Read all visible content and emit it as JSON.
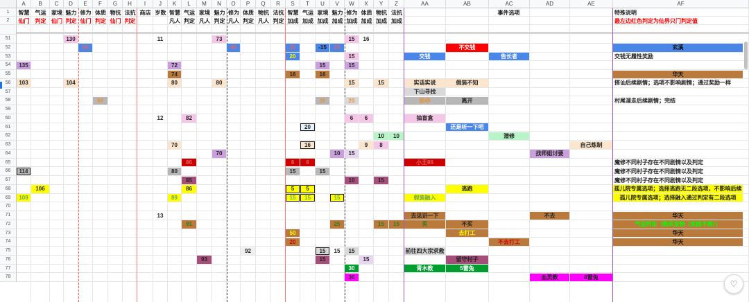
{
  "columns": [
    "A",
    "B",
    "C",
    "D",
    "E",
    "F",
    "G",
    "H",
    "I",
    "J",
    "K",
    "L",
    "M",
    "N",
    "O",
    "P",
    "Q",
    "R",
    "S",
    "T",
    "U",
    "V",
    "W",
    "X",
    "Y",
    "Z",
    "AA",
    "AB",
    "AC",
    "AD",
    "AE",
    "AF"
  ],
  "rows": [
    "1",
    "2",
    "51",
    "52",
    "53",
    "54",
    "55",
    "56",
    "57",
    "58",
    "59",
    "60",
    "61",
    "62",
    "63",
    "64",
    "65",
    "66",
    "67",
    "68",
    "69",
    "70",
    "71",
    "72",
    "73",
    "74",
    "75",
    "76",
    "77",
    "78"
  ],
  "header_row1": {
    "A": "智慧",
    "B": "气运",
    "C": "家境",
    "D": "魅力",
    "E": "修为",
    "F": "体质",
    "G": "物抗",
    "H": "法抗",
    "I": "商店",
    "J": "岁数",
    "K": "智慧",
    "L": "气运",
    "M": "家境",
    "N": "魅力",
    "O": "修为",
    "P": "体质",
    "Q": "物抗",
    "R": "法抗",
    "S": "智慧",
    "T": "气运",
    "U": "家境",
    "V": "魅力",
    "W": "修为",
    "X": "体质",
    "Y": "物抗",
    "Z": "法抗",
    "AB": "事件选项",
    "AF": "特殊说明"
  },
  "header_row2": {
    "A": "仙门",
    "B": "判定",
    "C": "仙门",
    "D": "判定",
    "E": "仙门",
    "F": "判定",
    "G": "仙门",
    "H": "判定",
    "K": "凡人",
    "L": "判定",
    "M": "凡人",
    "N": "判定",
    "O": "凡人",
    "P": "判定",
    "Q": "凡人",
    "R": "判定",
    "S": "加成",
    "T": "加成",
    "U": "加成",
    "V": "加成",
    "W": "加成",
    "X": "加成",
    "Y": "加成",
    "Z": "加成",
    "AF": "最左边红色判定为仙界只门判定值"
  },
  "cells": [
    {
      "r": "51",
      "c": "D",
      "v": "130",
      "bg": "#f4c7e8",
      "fg": "#222",
      "b": true
    },
    {
      "r": "51",
      "c": "J",
      "v": "11",
      "fg": "#222",
      "b": true
    },
    {
      "r": "51",
      "c": "N",
      "v": "73",
      "bg": "#f4c7e8",
      "fg": "#222",
      "b": true
    },
    {
      "r": "51",
      "c": "W",
      "v": "15",
      "bg": "#f4c7e8",
      "fg": "#222",
      "b": true
    },
    {
      "r": "51",
      "c": "X",
      "v": "16",
      "fg": "#222",
      "b": true
    },
    {
      "r": "52",
      "c": "E",
      "v": "56",
      "bg": "#4a86e8",
      "fg": "#e06666",
      "b": true
    },
    {
      "r": "52",
      "c": "O",
      "v": "48",
      "bg": "#4a86e8",
      "fg": "#e06666",
      "b": true
    },
    {
      "r": "52",
      "c": "S",
      "v": "25",
      "bg": "#4a86e8",
      "fg": "#e06666",
      "b": true
    },
    {
      "r": "52",
      "c": "U",
      "v": "-15",
      "bg": "#4a86e8",
      "fg": "#111",
      "b": true
    },
    {
      "r": "52",
      "c": "V",
      "v": "25",
      "bg": "#4a86e8",
      "fg": "#e06666",
      "b": true
    },
    {
      "r": "52",
      "c": "AB",
      "v": "不交钱",
      "bg": "#ff0000",
      "fg": "#ffffff",
      "b": true,
      "span": 1
    },
    {
      "r": "52",
      "c": "AF",
      "v": "玄溪",
      "bg": "#4a86e8",
      "fg": "#111",
      "b": true
    },
    {
      "r": "53",
      "c": "S",
      "v": "20",
      "bg": "#4a86e8",
      "fg": "#ffff00",
      "b": true
    },
    {
      "r": "53",
      "c": "W",
      "v": "15",
      "bg": "#f4c7e8",
      "fg": "#222",
      "b": true
    },
    {
      "r": "53",
      "c": "AA",
      "v": "交钱",
      "bg": "#4a86e8",
      "fg": "#ffffff",
      "b": true
    },
    {
      "r": "53",
      "c": "AC",
      "v": "告长者",
      "bg": "#4a86e8",
      "fg": "#ffffff",
      "b": true
    },
    {
      "r": "53",
      "c": "AF",
      "v": "交钱无履性奖励",
      "fg": "#222",
      "b": true,
      "al": "l"
    },
    {
      "r": "54",
      "c": "A",
      "v": "135",
      "bg": "#c9a0dc",
      "fg": "#222",
      "b": true
    },
    {
      "r": "54",
      "c": "K",
      "v": "72",
      "bg": "#c9a0dc",
      "fg": "#222",
      "b": true
    },
    {
      "r": "54",
      "c": "U",
      "v": "15",
      "bg": "#c9a0dc",
      "fg": "#222",
      "b": true
    },
    {
      "r": "54",
      "c": "W",
      "v": "15",
      "bg": "#c9a0dc",
      "fg": "#222",
      "b": true
    },
    {
      "r": "55",
      "c": "K",
      "v": "74",
      "bg": "#b97a3c",
      "fg": "#222",
      "b": true
    },
    {
      "r": "55",
      "c": "S",
      "v": "16",
      "bg": "#b97a3c",
      "fg": "#222",
      "b": true
    },
    {
      "r": "55",
      "c": "U",
      "v": "16",
      "bg": "#b97a3c",
      "fg": "#222",
      "b": true
    },
    {
      "r": "55",
      "c": "AF",
      "v": "华天",
      "bg": "#b97a3c",
      "fg": "#111",
      "b": true
    },
    {
      "r": "56",
      "c": "A",
      "v": "103",
      "bg": "#fce5cd",
      "fg": "#222",
      "b": true
    },
    {
      "r": "56",
      "c": "D",
      "v": "104",
      "bg": "#fce5cd",
      "fg": "#222",
      "b": true
    },
    {
      "r": "56",
      "c": "K",
      "v": "80",
      "bg": "#fce5cd",
      "fg": "#222",
      "b": true
    },
    {
      "r": "56",
      "c": "N",
      "v": "80",
      "bg": "#fce5cd",
      "fg": "#222",
      "b": true
    },
    {
      "r": "56",
      "c": "W",
      "v": "15",
      "bg": "#fce5cd",
      "fg": "#222",
      "b": true
    },
    {
      "r": "56",
      "c": "Y",
      "v": "15",
      "bg": "#fce5cd",
      "fg": "#222",
      "b": true
    },
    {
      "r": "56",
      "c": "AA",
      "v": "实话实说",
      "bg": "#fce5cd",
      "fg": "#222",
      "b": true
    },
    {
      "r": "56",
      "c": "AB",
      "v": "假装不知",
      "bg": "#fce5cd",
      "fg": "#222",
      "b": true
    },
    {
      "r": "56",
      "c": "AF",
      "v": "搭讪后续剧情；选项不影响剧情；通过奖励一样",
      "fg": "#222",
      "b": true,
      "al": "l"
    },
    {
      "r": "57",
      "c": "AA",
      "v": "下山寻找",
      "bg": "#d9d9d9",
      "fg": "#222",
      "b": true
    },
    {
      "r": "58",
      "c": "F",
      "v": "98",
      "bg": "#b7b7b7",
      "fg": "#e69138",
      "b": true
    },
    {
      "r": "58",
      "c": "U",
      "v": "20",
      "bg": "#b7b7b7",
      "fg": "#e69138",
      "b": true
    },
    {
      "r": "58",
      "c": "W",
      "v": "20",
      "bg": "#d9d9d9",
      "fg": "#e69138",
      "b": true
    },
    {
      "r": "58",
      "c": "AA",
      "v": "掐夺",
      "bg": "#b7b7b7",
      "fg": "#e69138",
      "b": true
    },
    {
      "r": "58",
      "c": "AB",
      "v": "离开",
      "bg": "#b7b7b7",
      "fg": "#222",
      "b": true
    },
    {
      "r": "58",
      "c": "AF",
      "v": "村尾溜走后续剧情；完结",
      "fg": "#222",
      "b": true,
      "al": "l"
    },
    {
      "r": "60",
      "c": "J",
      "v": "12",
      "fg": "#222",
      "b": true
    },
    {
      "r": "60",
      "c": "L",
      "v": "82",
      "bg": "#f4c7e8",
      "fg": "#222",
      "b": true
    },
    {
      "r": "60",
      "c": "W",
      "v": "6",
      "bg": "#f4c7e8",
      "fg": "#222",
      "b": true
    },
    {
      "r": "60",
      "c": "X",
      "v": "6",
      "bg": "#f4c7e8",
      "fg": "#222",
      "b": true
    },
    {
      "r": "60",
      "c": "AA",
      "v": "抽盲盒",
      "bg": "#f4c7e8",
      "fg": "#222",
      "b": true
    },
    {
      "r": "61",
      "c": "T",
      "v": "20",
      "bg": "#e8f4fd",
      "fg": "#222",
      "b": true,
      "bd": "#222"
    },
    {
      "r": "61",
      "c": "AB",
      "v": "还是听一下吧",
      "bg": "#4a86e8",
      "fg": "#ffffff",
      "b": true
    },
    {
      "r": "62",
      "c": "Y",
      "v": "10",
      "bg": "#b7f5c8",
      "fg": "#222",
      "b": true
    },
    {
      "r": "62",
      "c": "Z",
      "v": "10",
      "bg": "#b7f5c8",
      "fg": "#222",
      "b": true
    },
    {
      "r": "62",
      "c": "AC",
      "v": "潜修",
      "bg": "#b7f5c8",
      "fg": "#222",
      "b": true
    },
    {
      "r": "63",
      "c": "K",
      "v": "70",
      "bg": "#fce5cd",
      "fg": "#222",
      "b": true
    },
    {
      "r": "63",
      "c": "T",
      "v": "16",
      "bg": "#fce5cd",
      "fg": "#222",
      "b": true,
      "bd": "#222"
    },
    {
      "r": "63",
      "c": "X",
      "v": "9",
      "bg": "#fce5cd",
      "fg": "#222",
      "b": true
    },
    {
      "r": "63",
      "c": "Y",
      "v": "8",
      "bg": "#f4c7e8",
      "fg": "#222",
      "b": true
    },
    {
      "r": "63",
      "c": "AE",
      "v": "自己炼制",
      "bg": "#fce5cd",
      "fg": "#222",
      "b": true
    },
    {
      "r": "64",
      "c": "N",
      "v": "70",
      "bg": "#c9a0dc",
      "fg": "#222",
      "b": true
    },
    {
      "r": "64",
      "c": "V",
      "v": "10",
      "bg": "#c9a0dc",
      "fg": "#222",
      "b": true
    },
    {
      "r": "64",
      "c": "W",
      "v": "15",
      "bg": "#e8d5f0",
      "fg": "#222",
      "b": true
    },
    {
      "r": "64",
      "c": "AD",
      "v": "找师姐讨要",
      "bg": "#c9a0dc",
      "fg": "#222",
      "b": true
    },
    {
      "r": "65",
      "c": "L",
      "v": "86",
      "bg": "#cc0000",
      "fg": "#e06666",
      "b": true
    },
    {
      "r": "65",
      "c": "S",
      "v": "8",
      "bg": "#cc0000",
      "fg": "#e06666",
      "b": true
    },
    {
      "r": "65",
      "c": "T",
      "v": "8",
      "bg": "#cc0000",
      "fg": "#e06666",
      "b": true
    },
    {
      "r": "65",
      "c": "AA",
      "v": "小王86",
      "bg": "#cc0000",
      "fg": "#e06666",
      "b": true
    },
    {
      "r": "65",
      "c": "AF",
      "v": "魔修不同村子存在不同剧情以及判定",
      "fg": "#222",
      "b": true,
      "al": "l"
    },
    {
      "r": "66",
      "c": "A",
      "v": "114",
      "bg": "#b7b7b7",
      "fg": "#222",
      "b": true,
      "bd": "#222"
    },
    {
      "r": "66",
      "c": "K",
      "v": "80",
      "bg": "#b7b7b7",
      "fg": "#222",
      "b": true
    },
    {
      "r": "66",
      "c": "S",
      "v": "15",
      "bg": "#b7b7b7",
      "fg": "#222",
      "b": true
    },
    {
      "r": "66",
      "c": "U",
      "v": "15",
      "bg": "#b7b7b7",
      "fg": "#222",
      "b": true
    },
    {
      "r": "66",
      "c": "AF",
      "v": "魔修不同村子存在不同剧情以及判定",
      "fg": "#222",
      "b": true,
      "al": "l"
    },
    {
      "r": "67",
      "c": "L",
      "v": "85",
      "bg": "#a64d79",
      "fg": "#222",
      "b": true
    },
    {
      "r": "67",
      "c": "W",
      "v": "10",
      "bg": "#a64d79",
      "fg": "#222",
      "b": true
    },
    {
      "r": "67",
      "c": "Y",
      "v": "15",
      "bg": "#a64d79",
      "fg": "#222",
      "b": true
    },
    {
      "r": "67",
      "c": "AF",
      "v": "魔修不同村子存在不同剧情以及判定",
      "fg": "#222",
      "b": true,
      "al": "l"
    },
    {
      "r": "68",
      "c": "B",
      "v": "106",
      "bg": "#ffff00",
      "fg": "#222",
      "b": true
    },
    {
      "r": "68",
      "c": "L",
      "v": "86",
      "bg": "#ffff00",
      "fg": "#222",
      "b": true
    },
    {
      "r": "68",
      "c": "S",
      "v": "5",
      "bg": "#ffff00",
      "fg": "#222",
      "b": true,
      "bd": "#222"
    },
    {
      "r": "68",
      "c": "T",
      "v": "5",
      "bg": "#ffff00",
      "fg": "#222",
      "b": true,
      "bd": "#222"
    },
    {
      "r": "68",
      "c": "AB",
      "v": "逃跑",
      "bg": "#ffff00",
      "fg": "#222",
      "b": true
    },
    {
      "r": "68",
      "c": "AF",
      "v": "孤儿院专属选项；选择逃跑无二段选项，不影响后续",
      "bg": "#ffff00",
      "fg": "#222",
      "b": true
    },
    {
      "r": "69",
      "c": "A",
      "v": "109",
      "bg": "#ffff00",
      "fg": "#6aa84f",
      "b": true
    },
    {
      "r": "69",
      "c": "K",
      "v": "89",
      "bg": "#ffff00",
      "fg": "#6aa84f",
      "b": true
    },
    {
      "r": "69",
      "c": "S",
      "v": "15",
      "bg": "#ffff00",
      "fg": "#6aa84f",
      "b": true,
      "bd": "#222"
    },
    {
      "r": "69",
      "c": "T",
      "v": "15",
      "bg": "#ffff00",
      "fg": "#6aa84f",
      "b": true,
      "bd": "#222"
    },
    {
      "r": "69",
      "c": "V",
      "v": "15",
      "bg": "#ffff00",
      "fg": "#6aa84f",
      "b": true,
      "bd": "#222"
    },
    {
      "r": "69",
      "c": "AA",
      "v": "假装融入",
      "bg": "#ffff00",
      "fg": "#6aa84f",
      "b": true
    },
    {
      "r": "69",
      "c": "AF",
      "v": "孤儿院专属选项；选择融入通过判定有二段选项",
      "bg": "#ffff00",
      "fg": "#222",
      "b": true
    },
    {
      "r": "71",
      "c": "J",
      "v": "13",
      "fg": "#222",
      "b": true
    },
    {
      "r": "71",
      "c": "AA",
      "v": "去见识一下",
      "bg": "#b97a3c",
      "fg": "#222",
      "b": true
    },
    {
      "r": "71",
      "c": "AD",
      "v": "不去",
      "bg": "#b97a3c",
      "fg": "#222",
      "b": true
    },
    {
      "r": "71",
      "c": "AF",
      "v": "华天",
      "bg": "#b97a3c",
      "fg": "#111",
      "b": true
    },
    {
      "r": "72",
      "c": "L",
      "v": "91",
      "bg": "#b97a3c",
      "fg": "#38761d",
      "b": true
    },
    {
      "r": "72",
      "c": "V",
      "v": "25",
      "bg": "#b97a3c",
      "fg": "#38761d",
      "b": true
    },
    {
      "r": "72",
      "c": "Y",
      "v": "15",
      "bg": "#b97a3c",
      "fg": "#38761d",
      "b": true
    },
    {
      "r": "72",
      "c": "Z",
      "v": "15",
      "bg": "#b97a3c",
      "fg": "#38761d",
      "b": true
    },
    {
      "r": "72",
      "c": "AA",
      "v": "买",
      "bg": "#b97a3c",
      "fg": "#38761d",
      "b": true
    },
    {
      "r": "72",
      "c": "AB",
      "v": "不买",
      "bg": "#b97a3c",
      "fg": "#222",
      "b": true
    },
    {
      "r": "72",
      "c": "AF",
      "v": "气运判定（购买宝物（奖励不高））",
      "bg": "#b97a3c",
      "fg": "#00ff00",
      "b": true
    },
    {
      "r": "73",
      "c": "S",
      "v": "50",
      "bg": "#b97a3c",
      "fg": "#ffff00",
      "b": true
    },
    {
      "r": "73",
      "c": "AB",
      "v": "去打工",
      "bg": "#b97a3c",
      "fg": "#ffff00",
      "b": true
    },
    {
      "r": "73",
      "c": "AF",
      "v": "华天",
      "bg": "#b97a3c",
      "fg": "#111",
      "b": true
    },
    {
      "r": "74",
      "c": "S",
      "v": "20",
      "bg": "#b97a3c",
      "fg": "#cc0000",
      "b": true
    },
    {
      "r": "74",
      "c": "AC",
      "v": "不去打工",
      "bg": "#b97a3c",
      "fg": "#cc0000",
      "b": true
    },
    {
      "r": "74",
      "c": "AF",
      "v": "华天",
      "bg": "#b97a3c",
      "fg": "#111",
      "b": true
    },
    {
      "r": "75",
      "c": "P",
      "v": "92",
      "bg": "#efefef",
      "fg": "#222",
      "b": true
    },
    {
      "r": "75",
      "c": "U",
      "v": "15",
      "bg": "#d9d9d9",
      "fg": "#222",
      "b": true,
      "bd": "#222"
    },
    {
      "r": "75",
      "c": "V",
      "v": "15",
      "bg": "#ffffff",
      "fg": "#222",
      "b": true
    },
    {
      "r": "75",
      "c": "W",
      "v": "15",
      "bg": "#d9d9d9",
      "fg": "#222",
      "b": true
    },
    {
      "r": "75",
      "c": "AA",
      "v": "前往四大宗求救",
      "bg": "#d9d9d9",
      "fg": "#222",
      "b": true
    },
    {
      "r": "76",
      "c": "M",
      "v": "93",
      "bg": "#a64d79",
      "fg": "#222",
      "b": true
    },
    {
      "r": "76",
      "c": "U",
      "v": "15",
      "bg": "#a64d79",
      "fg": "#222",
      "b": true
    },
    {
      "r": "76",
      "c": "X",
      "v": "15",
      "bg": "#e8d5f0",
      "fg": "#222",
      "b": true
    },
    {
      "r": "76",
      "c": "AB",
      "v": "留守村子",
      "bg": "#a64d79",
      "fg": "#222",
      "b": true
    },
    {
      "r": "77",
      "c": "W",
      "v": "30",
      "bg": "#009e2e",
      "fg": "#ffffff",
      "b": true
    },
    {
      "r": "77",
      "c": "AA",
      "v": "青木教",
      "bg": "#009e2e",
      "fg": "#ffffff",
      "b": true
    },
    {
      "r": "77",
      "c": "AB",
      "v": "5雷兔",
      "bg": "#009e2e",
      "fg": "#ffffff",
      "b": true
    },
    {
      "r": "78",
      "c": "W",
      "v": "30",
      "bg": "#ff00ff",
      "fg": "#222",
      "b": true
    },
    {
      "r": "78",
      "c": "AD",
      "v": "血灵教",
      "bg": "#ff00ff",
      "fg": "#222",
      "b": true
    },
    {
      "r": "78",
      "c": "AE",
      "v": "8雷兔",
      "bg": "#ff00ff",
      "fg": "#222",
      "b": true
    }
  ],
  "colors": {
    "header_red": "#ff0000",
    "grid": "#e6e6e6"
  },
  "icons": {
    "fab": "paste-icon",
    "scroll": "scrollbar-thumb"
  }
}
